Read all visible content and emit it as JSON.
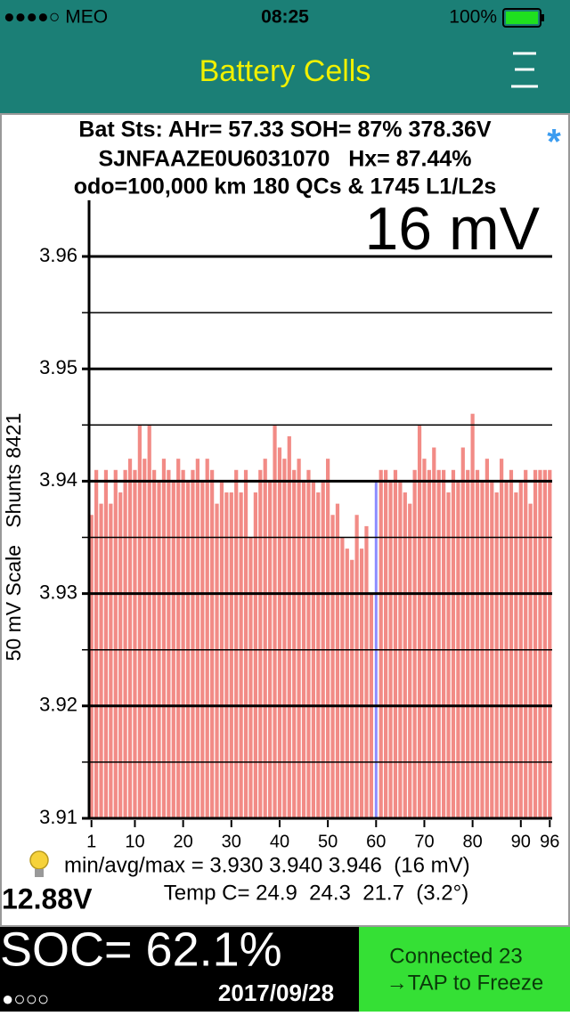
{
  "status_bar": {
    "carrier": "●●●●○ MEO",
    "time": "08:25",
    "battery": "100%"
  },
  "nav_bar": {
    "title": "Battery Cells"
  },
  "panel": {
    "lines": [
      "Bat Sts: AHr= 57.33 SOH= 87% 378.36V",
      "SJNFAAZE0U6031070   Hx= 87.44%",
      "odo=100,000 km 180 QCs & 1745 L1/L2s"
    ],
    "badge": "*",
    "stats": "min/avg/max = 3.930 3.940 3.946  (16 mV)",
    "temp": "Temp C= 24.9  24.3  21.7  (3.2°)",
    "pack_voltage": "12.88V"
  },
  "chart_data": {
    "type": "bar",
    "annotation": "16 mV",
    "ylabel": "50 mV Scale   Shunts 8421",
    "x": [
      1,
      2,
      3,
      4,
      5,
      6,
      7,
      8,
      9,
      10,
      11,
      12,
      13,
      14,
      15,
      16,
      17,
      18,
      19,
      20,
      21,
      22,
      23,
      24,
      25,
      26,
      27,
      28,
      29,
      30,
      31,
      32,
      33,
      34,
      35,
      36,
      37,
      38,
      39,
      40,
      41,
      42,
      43,
      44,
      45,
      46,
      47,
      48,
      49,
      50,
      51,
      52,
      53,
      54,
      55,
      56,
      57,
      58,
      59,
      60,
      61,
      62,
      63,
      64,
      65,
      66,
      67,
      68,
      69,
      70,
      71,
      72,
      73,
      74,
      75,
      76,
      77,
      78,
      79,
      80,
      81,
      82,
      83,
      84,
      85,
      86,
      87,
      88,
      89,
      90,
      91,
      92,
      93,
      94,
      95,
      96
    ],
    "values": [
      3.937,
      3.941,
      3.938,
      3.941,
      3.938,
      3.941,
      3.939,
      3.941,
      3.942,
      3.941,
      3.945,
      3.942,
      3.945,
      3.941,
      3.94,
      3.942,
      3.941,
      3.94,
      3.942,
      3.941,
      3.94,
      3.941,
      3.942,
      3.94,
      3.942,
      3.941,
      3.938,
      3.94,
      3.939,
      3.939,
      3.941,
      3.939,
      3.941,
      3.935,
      3.939,
      3.941,
      3.942,
      3.94,
      3.945,
      3.943,
      3.942,
      3.944,
      3.941,
      3.942,
      3.94,
      3.941,
      3.94,
      3.939,
      3.94,
      3.942,
      3.937,
      3.938,
      3.935,
      3.934,
      3.933,
      3.937,
      3.934,
      3.936,
      3.93,
      3.94,
      3.941,
      3.941,
      3.94,
      3.941,
      3.94,
      3.939,
      3.938,
      3.941,
      3.945,
      3.942,
      3.941,
      3.943,
      3.941,
      3.941,
      3.939,
      3.941,
      3.94,
      3.943,
      3.941,
      3.946,
      3.941,
      3.94,
      3.942,
      3.94,
      3.939,
      3.942,
      3.94,
      3.941,
      3.939,
      3.94,
      3.941,
      3.938,
      3.941,
      3.941,
      3.941,
      3.941
    ],
    "color": "#f28b86",
    "selected": 60,
    "selected_color": "#8c8cff",
    "xlim": [
      0.5,
      96.5
    ],
    "xticks": [
      1,
      10,
      20,
      30,
      40,
      50,
      60,
      70,
      80,
      90,
      96
    ],
    "ylim": [
      3.91,
      3.965
    ],
    "yticks": [
      3.91,
      3.92,
      3.93,
      3.94,
      3.95,
      3.96
    ],
    "minor_yticks": [
      3.915,
      3.925,
      3.935,
      3.945,
      3.955
    ],
    "grid": true
  },
  "footer": {
    "soc": "SOC= 62.1%",
    "pages": "●○○○",
    "date": "2017/09/28",
    "connection": "Connected 23",
    "action": "→TAP to Freeze"
  }
}
